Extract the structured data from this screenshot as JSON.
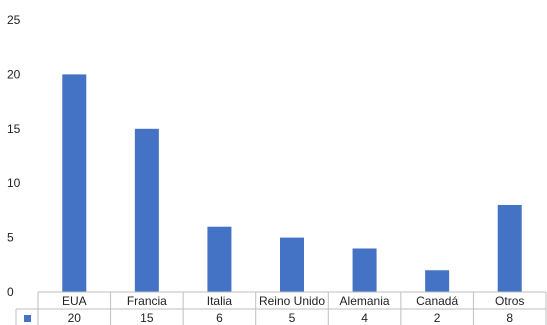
{
  "colors": {
    "bar": "#4472C4",
    "grid": "#bfbfbf",
    "text": "#222222"
  },
  "chart_data": {
    "type": "bar",
    "title": "",
    "xlabel": "",
    "ylabel": "",
    "ylim": [
      0,
      25
    ],
    "yticks": [
      "0",
      "5",
      "10",
      "15",
      "20",
      "25"
    ],
    "categories": [
      "EUA",
      "Francia",
      "Italia",
      "Reino Unido",
      "Alemania",
      "Canadá",
      "Otros"
    ],
    "values": [
      20,
      15,
      6,
      5,
      4,
      2,
      8
    ],
    "value_labels": [
      "20",
      "15",
      "6",
      "5",
      "4",
      "2",
      "8"
    ],
    "data_table": true,
    "grid": false
  }
}
